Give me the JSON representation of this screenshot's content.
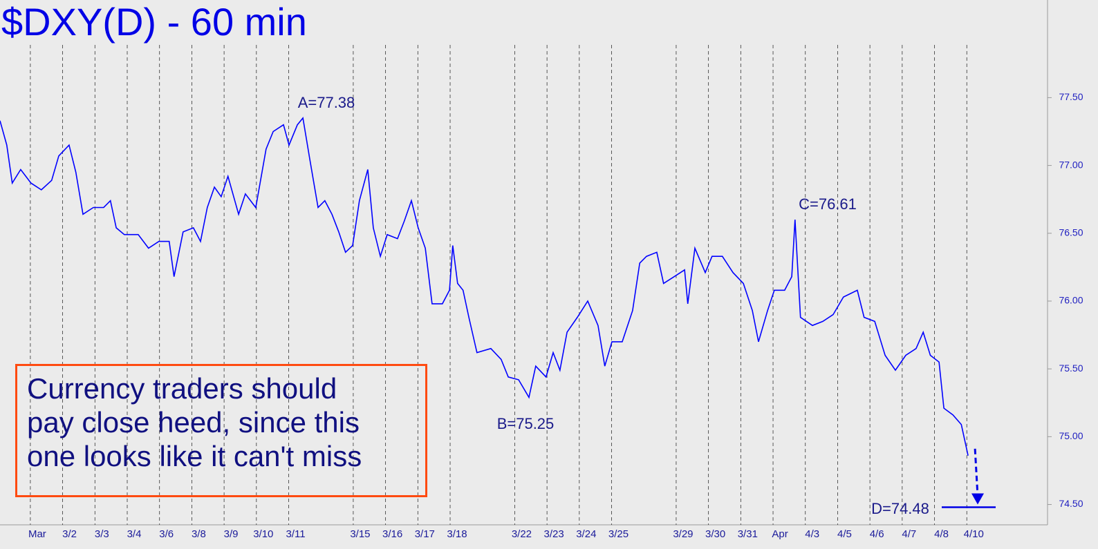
{
  "chart_data": {
    "type": "line",
    "title": "$DXY(D) - 60 min",
    "xlim": [
      -0.94,
      31.5
    ],
    "ylim": [
      74.35,
      78.22
    ],
    "xticks": [
      {
        "value": 0,
        "label": "Mar"
      },
      {
        "value": 1,
        "label": "3/2"
      },
      {
        "value": 2,
        "label": "3/3"
      },
      {
        "value": 3,
        "label": "3/4"
      },
      {
        "value": 4,
        "label": "3/6"
      },
      {
        "value": 5,
        "label": "3/8"
      },
      {
        "value": 6,
        "label": "3/9"
      },
      {
        "value": 7,
        "label": "3/10"
      },
      {
        "value": 8,
        "label": "3/11"
      },
      {
        "value": 10,
        "label": "3/15"
      },
      {
        "value": 11,
        "label": "3/16"
      },
      {
        "value": 12,
        "label": "3/17"
      },
      {
        "value": 13,
        "label": "3/18"
      },
      {
        "value": 15,
        "label": "3/22"
      },
      {
        "value": 16,
        "label": "3/23"
      },
      {
        "value": 17,
        "label": "3/24"
      },
      {
        "value": 18,
        "label": "3/25"
      },
      {
        "value": 20,
        "label": "3/29"
      },
      {
        "value": 21,
        "label": "3/30"
      },
      {
        "value": 22,
        "label": "3/31"
      },
      {
        "value": 23,
        "label": "Apr"
      },
      {
        "value": 24,
        "label": "4/3"
      },
      {
        "value": 25,
        "label": "4/5"
      },
      {
        "value": 26,
        "label": "4/6"
      },
      {
        "value": 27,
        "label": "4/7"
      },
      {
        "value": 28,
        "label": "4/8"
      },
      {
        "value": 29,
        "label": "4/10"
      }
    ],
    "yticks": [
      {
        "value": 74.5,
        "label": "74.50"
      },
      {
        "value": 75,
        "label": "75.00"
      },
      {
        "value": 75.5,
        "label": "75.50"
      },
      {
        "value": 76,
        "label": "76.00"
      },
      {
        "value": 76.5,
        "label": "76.50"
      },
      {
        "value": 77,
        "label": "77.00"
      },
      {
        "value": 77.5,
        "label": "77.50"
      }
    ],
    "x": [
      -0.94,
      -0.73,
      -0.56,
      -0.3,
      0.02,
      0.34,
      0.66,
      0.88,
      1.2,
      1.41,
      1.63,
      1.95,
      2.27,
      2.48,
      2.66,
      2.91,
      3.34,
      3.66,
      3.98,
      4.3,
      4.45,
      4.73,
      5.05,
      5.27,
      5.48,
      5.7,
      5.91,
      6.12,
      6.45,
      6.66,
      6.98,
      7.3,
      7.52,
      7.84,
      8.01,
      8.27,
      8.44,
      8.65,
      8.91,
      9.12,
      9.34,
      9.55,
      9.76,
      9.98,
      10.19,
      10.45,
      10.62,
      10.84,
      11.05,
      11.37,
      11.58,
      11.8,
      12.01,
      12.23,
      12.44,
      12.76,
      12.98,
      13.08,
      13.23,
      13.4,
      13.58,
      13.83,
      14.26,
      14.58,
      14.8,
      15.12,
      15.44,
      15.65,
      15.97,
      16.19,
      16.4,
      16.62,
      16.94,
      17.26,
      17.58,
      17.79,
      18.01,
      18.33,
      18.65,
      18.87,
      19.08,
      19.4,
      19.61,
      19.94,
      20.26,
      20.36,
      20.58,
      20.9,
      21.11,
      21.43,
      21.76,
      22.08,
      22.36,
      22.55,
      22.83,
      23.04,
      23.36,
      23.58,
      23.68,
      23.85,
      24.22,
      24.54,
      24.86,
      25.18,
      25.61,
      25.82,
      26.15,
      26.47,
      26.79,
      27.11,
      27.43,
      27.65,
      27.87,
      28.14,
      28.29,
      28.57,
      28.83,
      29.04
    ],
    "series": [
      {
        "name": "$DXY(D)",
        "color": "#0000ff",
        "values": [
          77.33,
          77.15,
          76.87,
          76.97,
          76.87,
          76.82,
          76.89,
          77.07,
          77.15,
          76.95,
          76.64,
          76.69,
          76.69,
          76.74,
          76.54,
          76.49,
          76.49,
          76.39,
          76.44,
          76.44,
          76.18,
          76.51,
          76.54,
          76.44,
          76.69,
          76.84,
          76.77,
          76.92,
          76.64,
          76.79,
          76.69,
          77.12,
          77.25,
          77.3,
          77.15,
          77.3,
          77.35,
          77.05,
          76.69,
          76.74,
          76.64,
          76.51,
          76.36,
          76.41,
          76.74,
          76.97,
          76.54,
          76.33,
          76.49,
          76.46,
          76.59,
          76.74,
          76.54,
          76.39,
          75.98,
          75.98,
          76.08,
          76.41,
          76.13,
          76.08,
          75.88,
          75.62,
          75.65,
          75.57,
          75.44,
          75.42,
          75.29,
          75.52,
          75.44,
          75.62,
          75.49,
          75.77,
          75.88,
          76.0,
          75.82,
          75.52,
          75.7,
          75.7,
          75.93,
          76.28,
          76.33,
          76.36,
          76.13,
          76.18,
          76.23,
          75.98,
          76.39,
          76.21,
          76.33,
          76.33,
          76.21,
          76.13,
          75.93,
          75.7,
          75.93,
          76.08,
          76.08,
          76.18,
          76.6,
          75.88,
          75.82,
          75.85,
          75.9,
          76.03,
          76.08,
          75.88,
          75.85,
          75.6,
          75.49,
          75.6,
          75.65,
          75.77,
          75.6,
          75.55,
          75.21,
          75.16,
          75.09,
          74.86
        ]
      }
    ],
    "annotations": [
      "A=77.38",
      "B=75.25",
      "C=76.61",
      "D=74.48"
    ],
    "target_line": 74.48,
    "note": [
      "Currency traders should",
      "pay close heed, since this",
      "one looks like it can't miss"
    ],
    "grid": true
  }
}
